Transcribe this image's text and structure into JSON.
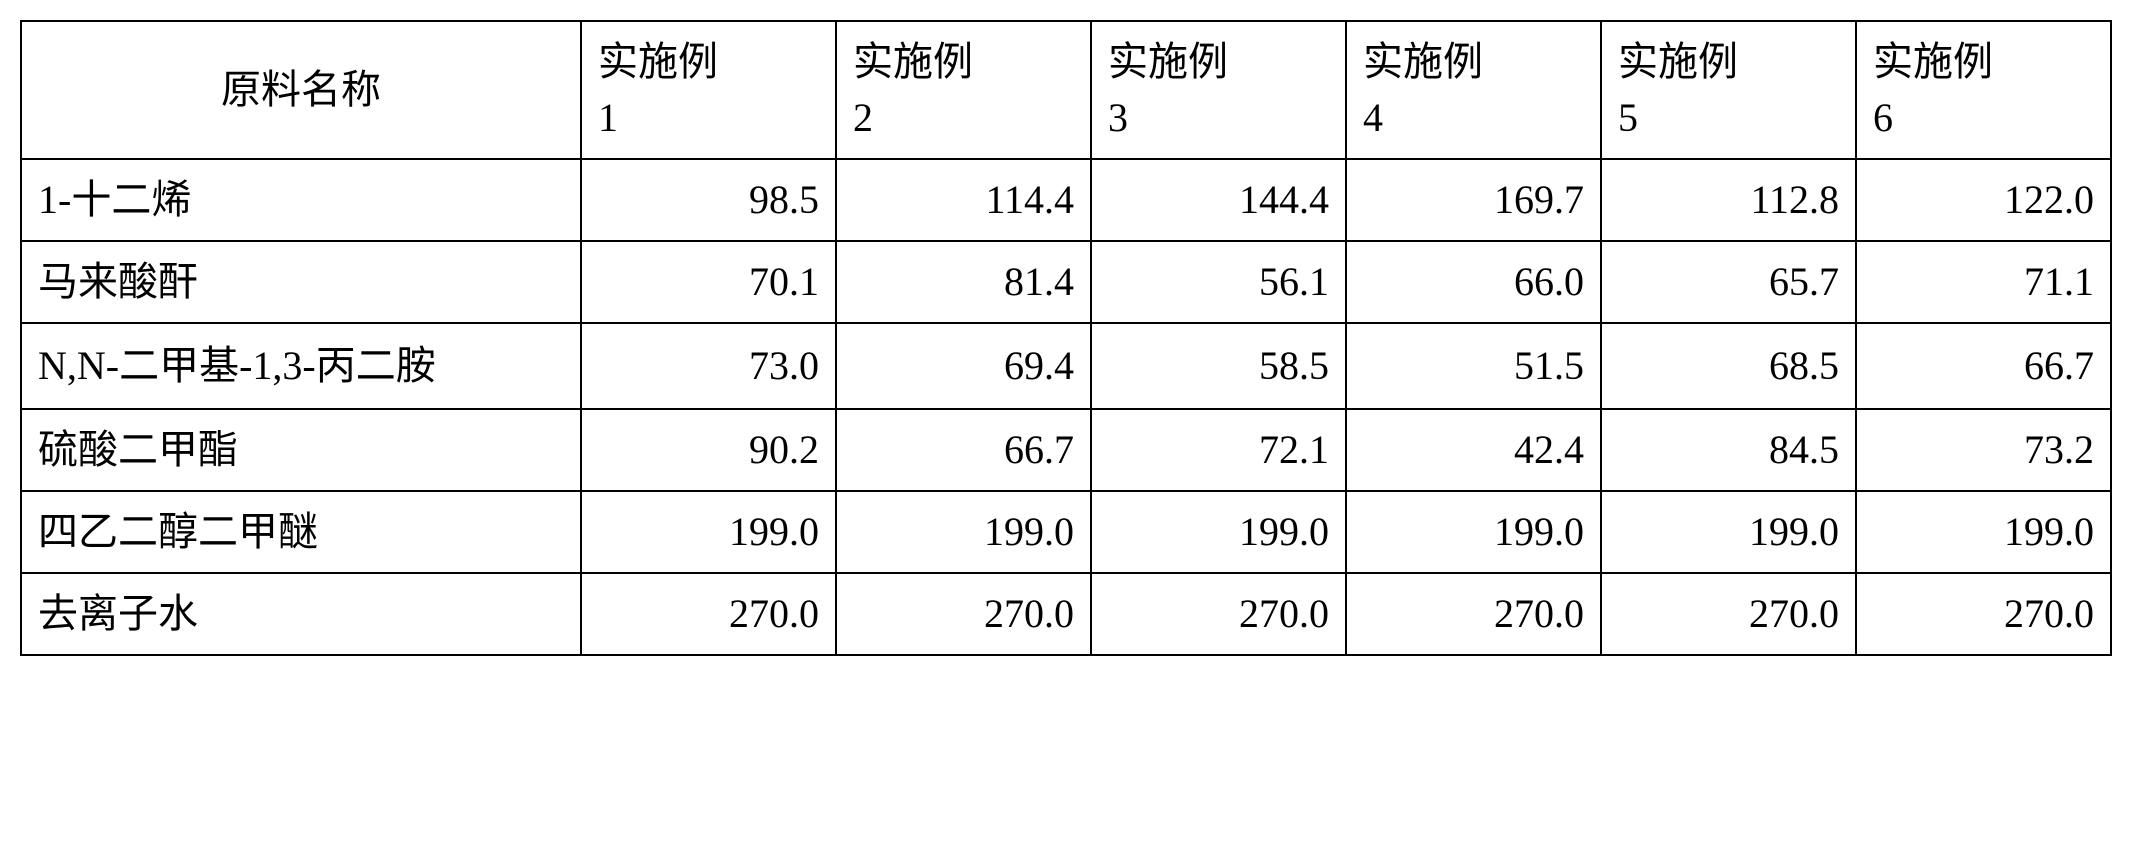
{
  "table": {
    "type": "table",
    "background_color": "#ffffff",
    "border_color": "#000000",
    "text_color": "#000000",
    "font_family": "SimSun",
    "font_size_pt": 30,
    "header": {
      "name_col": "原料名称",
      "data_cols_prefix": "实施例",
      "data_cols_nums": [
        "1",
        "2",
        "3",
        "4",
        "5",
        "6"
      ]
    },
    "columns_widths": [
      560,
      255,
      255,
      255,
      255,
      255,
      255
    ],
    "rows": [
      {
        "name": "1-十二烯",
        "values": [
          "98.5",
          "114.4",
          "144.4",
          "169.7",
          "112.8",
          "122.0"
        ]
      },
      {
        "name": "马来酸酐",
        "values": [
          "70.1",
          "81.4",
          "56.1",
          "66.0",
          "65.7",
          "71.1"
        ]
      },
      {
        "name": "N,N-二甲基-1,3-丙二胺",
        "values": [
          "73.0",
          "69.4",
          "58.5",
          "51.5",
          "68.5",
          "66.7"
        ]
      },
      {
        "name": "硫酸二甲酯",
        "values": [
          "90.2",
          "66.7",
          "72.1",
          "42.4",
          "84.5",
          "73.2"
        ]
      },
      {
        "name": "四乙二醇二甲醚",
        "values": [
          "199.0",
          "199.0",
          "199.0",
          "199.0",
          "199.0",
          "199.0"
        ]
      },
      {
        "name": "去离子水",
        "values": [
          "270.0",
          "270.0",
          "270.0",
          "270.0",
          "270.0",
          "270.0"
        ]
      }
    ]
  }
}
